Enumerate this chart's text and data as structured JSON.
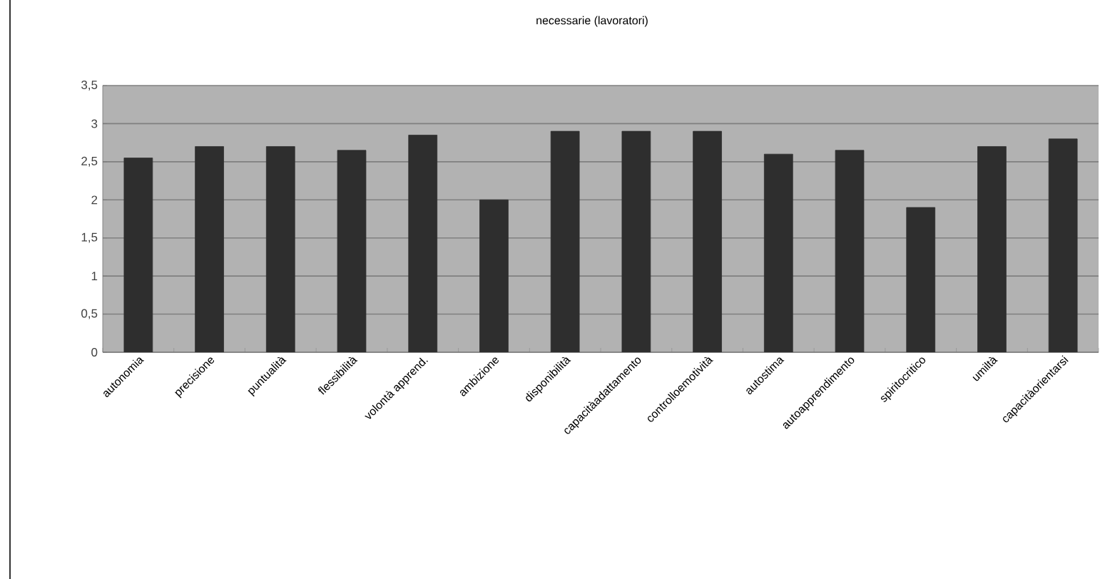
{
  "chart_data": {
    "type": "bar",
    "title": "necessarie (lavoratori)",
    "categories": [
      "autonomia",
      "precisione",
      "puntualità",
      "flessibilità",
      "volontà apprend.",
      "ambizione",
      "disponibilità",
      "capacitàadattamento",
      "controlloemotività",
      "autostima",
      "autoapprendimento",
      "spiritocritico",
      "umiltà",
      "capacitàorientarsi"
    ],
    "values": [
      2.55,
      2.7,
      2.7,
      2.65,
      2.85,
      2.0,
      2.9,
      2.9,
      2.9,
      2.6,
      2.65,
      1.9,
      2.7,
      2.8
    ],
    "color": "#2e2e2e",
    "ylim": [
      0,
      3.5
    ],
    "yticks": [
      0,
      {
        "value": 0.5,
        "label": "0,5"
      },
      1,
      {
        "value": 1.5,
        "label": "1,5"
      },
      2,
      {
        "value": 2.5,
        "label": "2,5"
      },
      3,
      {
        "value": 3.5,
        "label": "3,5"
      }
    ],
    "grid": "y"
  }
}
